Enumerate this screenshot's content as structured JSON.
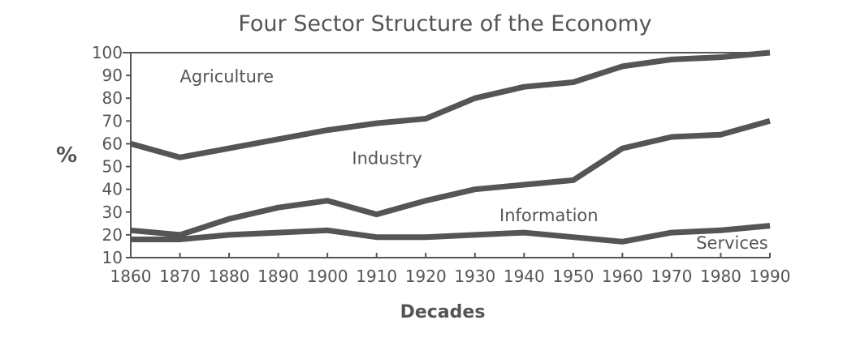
{
  "chart_data": {
    "type": "line",
    "title": "Four Sector Structure of the Economy",
    "xlabel": "Decades",
    "ylabel": "%",
    "x": [
      1860,
      1870,
      1880,
      1890,
      1900,
      1910,
      1920,
      1930,
      1940,
      1950,
      1960,
      1970,
      1980,
      1990
    ],
    "xticks": [
      "1860",
      "1870",
      "1880",
      "1890",
      "1900",
      "1910",
      "1920",
      "1930",
      "1940",
      "1950",
      "1960",
      "1970",
      "1980",
      "1990"
    ],
    "yticks": [
      "10",
      "20",
      "30",
      "40",
      "50",
      "60",
      "70",
      "80",
      "90",
      "100"
    ],
    "xlim": [
      1860,
      1990
    ],
    "ylim": [
      10,
      100
    ],
    "grid": false,
    "series": [
      {
        "name": "Agriculture / Industry boundary",
        "values": [
          60,
          54,
          58,
          62,
          66,
          69,
          71,
          80,
          85,
          87,
          94,
          97,
          98,
          100
        ]
      },
      {
        "name": "Industry / Information boundary",
        "values": [
          22,
          20,
          27,
          32,
          35,
          29,
          35,
          40,
          42,
          44,
          58,
          63,
          64,
          70
        ]
      },
      {
        "name": "Information / Services boundary",
        "values": [
          18,
          18,
          20,
          21,
          22,
          19,
          19,
          20,
          21,
          19,
          17,
          21,
          22,
          24
        ]
      }
    ],
    "region_labels": [
      {
        "text": "Agriculture",
        "x": 1870,
        "y": 87
      },
      {
        "text": "Industry",
        "x": 1905,
        "y": 51
      },
      {
        "text": "Information",
        "x": 1935,
        "y": 26
      },
      {
        "text": "Services",
        "x": 1975,
        "y": 14
      }
    ],
    "line_color": "#555555"
  }
}
